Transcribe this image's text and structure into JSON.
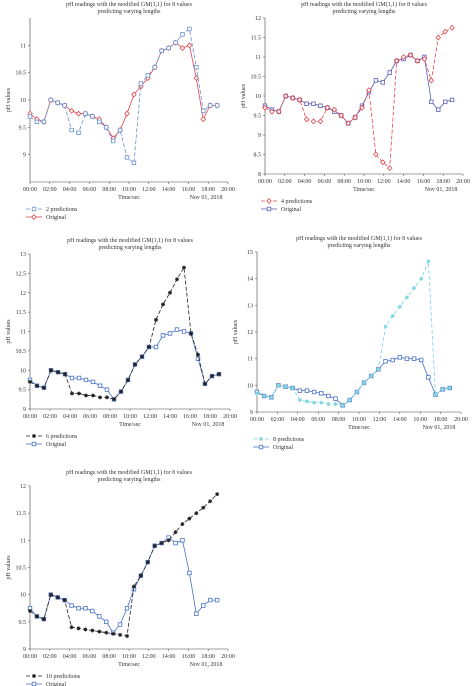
{
  "chart_data": [
    {
      "type": "line",
      "title": "pH readings with the modified GM(1,1) for 8 values predicting varying lengths",
      "title_lines": [
        "pH readings with the modified GM(1,1) for 8 values",
        "predicting varying lengths"
      ],
      "xlabel": "Time/sec",
      "xlabel2": "Nov 01, 2018",
      "ylabel": "pH values",
      "xticks": [
        "00:00",
        "02:00",
        "04:00",
        "06:00",
        "08:00",
        "10:00",
        "12:00",
        "14:00",
        "16:00",
        "18:00",
        "20:00"
      ],
      "xlim": [
        0,
        20
      ],
      "ylim": [
        8.5,
        11.5
      ],
      "yticks": [
        9,
        9.5,
        10,
        10.5,
        11
      ],
      "series": [
        {
          "name": "2 predictions",
          "color": "#6a8fd0",
          "marker": "square",
          "dash": "4,2",
          "x": [
            0,
            0.7,
            1.4,
            2.1,
            2.8,
            3.5,
            4.2,
            4.9,
            5.6,
            6.3,
            7.0,
            7.7,
            8.4,
            9.1,
            9.8,
            10.5,
            11.2,
            11.9,
            12.6,
            13.3,
            14.0,
            14.7,
            15.4,
            16.1,
            16.8,
            17.5,
            18.2,
            18.9
          ],
          "values": [
            9.7,
            9.6,
            9.6,
            10.0,
            9.95,
            9.9,
            9.45,
            9.4,
            9.75,
            9.7,
            9.6,
            9.5,
            9.25,
            9.45,
            8.95,
            8.85,
            10.3,
            10.45,
            10.6,
            10.9,
            10.95,
            11.05,
            11.2,
            11.3,
            10.6,
            9.8,
            9.9,
            9.9
          ]
        },
        {
          "name": "Original",
          "color": "#e0474c",
          "marker": "diamond",
          "dash": "",
          "x": [
            0,
            0.7,
            1.4,
            2.1,
            2.8,
            3.5,
            4.2,
            4.9,
            5.6,
            6.3,
            7.0,
            7.7,
            8.4,
            9.1,
            9.8,
            10.5,
            11.2,
            11.9,
            12.6,
            13.3,
            14.0,
            14.7,
            15.4,
            16.1,
            16.8,
            17.5,
            18.2,
            18.9
          ],
          "values": [
            9.75,
            9.65,
            9.6,
            10.0,
            9.95,
            9.9,
            9.8,
            9.75,
            9.75,
            9.7,
            9.65,
            9.5,
            9.3,
            9.45,
            9.75,
            10.1,
            10.25,
            10.4,
            10.6,
            10.9,
            10.95,
            11.05,
            10.95,
            11.0,
            10.4,
            9.65,
            9.9,
            9.9
          ]
        }
      ]
    },
    {
      "type": "line",
      "title": "pH readings with the modified GM(1,1) for 8 values predicting varying lengths",
      "title_lines": [
        "pH readings with the modified GM(1,1) for 8 values",
        "predicting varying lengths"
      ],
      "xlabel": "Time/sec",
      "xlabel2": "Nov 01, 2018",
      "ylabel": "pH values",
      "xticks": [
        "00:00",
        "02:00",
        "04:00",
        "06:00",
        "08:00",
        "10:00",
        "12:00",
        "14:00",
        "16:00",
        "18:00",
        "20:00"
      ],
      "xlim": [
        0,
        20
      ],
      "ylim": [
        8,
        12
      ],
      "yticks": [
        8,
        8.5,
        9,
        9.5,
        10,
        10.5,
        11,
        11.5,
        12
      ],
      "series": [
        {
          "name": "4 predictions",
          "color": "#e0474c",
          "marker": "diamond",
          "dash": "4,2",
          "x": [
            0,
            0.7,
            1.4,
            2.1,
            2.8,
            3.5,
            4.2,
            4.9,
            5.6,
            6.3,
            7.0,
            7.7,
            8.4,
            9.1,
            9.8,
            10.5,
            11.2,
            11.9,
            12.6,
            13.3,
            14.0,
            14.7,
            15.4,
            16.1,
            16.8,
            17.5,
            18.2,
            18.9
          ],
          "values": [
            9.7,
            9.6,
            9.6,
            10.0,
            9.95,
            9.9,
            9.4,
            9.35,
            9.35,
            9.7,
            9.65,
            9.5,
            9.3,
            9.45,
            9.7,
            10.15,
            8.5,
            8.3,
            8.15,
            10.9,
            11.0,
            11.05,
            10.9,
            10.95,
            10.4,
            11.5,
            11.65,
            11.75
          ]
        },
        {
          "name": "Original",
          "color": "#5b5fb6",
          "marker": "square",
          "dash": "",
          "x": [
            0,
            0.7,
            1.4,
            2.1,
            2.8,
            3.5,
            4.2,
            4.9,
            5.6,
            6.3,
            7.0,
            7.7,
            8.4,
            9.1,
            9.8,
            10.5,
            11.2,
            11.9,
            12.6,
            13.3,
            14.0,
            14.7,
            15.4,
            16.1,
            16.8,
            17.5,
            18.2,
            18.9
          ],
          "values": [
            9.75,
            9.65,
            9.6,
            10.0,
            9.95,
            9.9,
            9.8,
            9.8,
            9.75,
            9.7,
            9.6,
            9.5,
            9.3,
            9.45,
            9.75,
            10.1,
            10.4,
            10.35,
            10.6,
            10.9,
            10.95,
            11.05,
            10.9,
            11.0,
            9.85,
            9.65,
            9.85,
            9.9
          ]
        }
      ]
    },
    {
      "type": "line",
      "title": "pH readings with the modified GM(1,1) for 8 values predicting varying lengths",
      "title_lines": [
        "pH readings with the modified GM(1,1) for 8 values",
        "predicting varying lengths"
      ],
      "xlabel": "Time/sec",
      "xlabel2": "Nov 01, 2018",
      "ylabel": "pH values",
      "xticks": [
        "00:00",
        "02:00",
        "04:00",
        "06:00",
        "08:00",
        "10:00",
        "12:00",
        "14:00",
        "16:00",
        "18:00",
        "20:00"
      ],
      "xlim": [
        0,
        20
      ],
      "ylim": [
        9,
        13
      ],
      "yticks": [
        9,
        9.5,
        10,
        10.5,
        11,
        11.5,
        12,
        12.5,
        13
      ],
      "series": [
        {
          "name": "6 predictions",
          "color": "#222222",
          "marker": "star",
          "dash": "4,2",
          "x": [
            0,
            0.7,
            1.4,
            2.1,
            2.8,
            3.5,
            4.2,
            4.9,
            5.6,
            6.3,
            7.0,
            7.7,
            8.4,
            9.1,
            9.8,
            10.5,
            11.2,
            11.9,
            12.6,
            13.3,
            14.0,
            14.7,
            15.4,
            16.1,
            16.8,
            17.5,
            18.2,
            18.9
          ],
          "values": [
            9.7,
            9.6,
            9.55,
            10.0,
            9.95,
            9.9,
            9.4,
            9.4,
            9.35,
            9.35,
            9.3,
            9.3,
            9.25,
            9.45,
            9.75,
            10.15,
            10.35,
            10.6,
            11.3,
            11.7,
            12.0,
            12.35,
            12.65,
            10.95,
            10.4,
            9.65,
            9.85,
            9.9
          ]
        },
        {
          "name": "Original",
          "color": "#4a73c8",
          "marker": "square",
          "dash": "",
          "x": [
            0,
            0.7,
            1.4,
            2.1,
            2.8,
            3.5,
            4.2,
            4.9,
            5.6,
            6.3,
            7.0,
            7.7,
            8.4,
            9.1,
            9.8,
            10.5,
            11.2,
            11.9,
            12.6,
            13.3,
            14.0,
            14.7,
            15.4,
            16.1,
            16.8,
            17.5,
            18.2,
            18.9
          ],
          "values": [
            9.75,
            9.6,
            9.55,
            10.0,
            9.95,
            9.9,
            9.8,
            9.8,
            9.75,
            9.7,
            9.6,
            9.5,
            9.25,
            9.45,
            9.75,
            10.15,
            10.35,
            10.6,
            10.6,
            10.9,
            10.95,
            11.05,
            11.0,
            10.95,
            10.3,
            9.65,
            9.85,
            9.9
          ]
        }
      ]
    },
    {
      "type": "line",
      "title": "pH readings with the modified GM(1,1) for 8 values predicting varying lengths",
      "title_lines": [
        "pH readings with the modified GM(1,1) for 8 values",
        "predicting varying lengths"
      ],
      "xlabel": "Time/sec",
      "xlabel2": "Nov 01, 2018",
      "ylabel": "pH values",
      "xticks": [
        "00:00",
        "02:00",
        "04:00",
        "06:00",
        "08:00",
        "10:00",
        "12:00",
        "14:00",
        "16:00",
        "18:00",
        "20:00"
      ],
      "xlim": [
        0,
        20
      ],
      "ylim": [
        9,
        15
      ],
      "yticks": [
        9,
        10,
        11,
        12,
        13,
        14,
        15
      ],
      "series": [
        {
          "name": "8 predictions",
          "color": "#7fd6e0",
          "marker": "star",
          "dash": "4,2",
          "x": [
            0,
            0.7,
            1.4,
            2.1,
            2.8,
            3.5,
            4.2,
            4.9,
            5.6,
            6.3,
            7.0,
            7.7,
            8.4,
            9.1,
            9.8,
            10.5,
            11.2,
            11.9,
            12.6,
            13.3,
            14.0,
            14.7,
            15.4,
            16.1,
            16.8,
            17.5,
            18.2,
            18.9
          ],
          "values": [
            9.7,
            9.6,
            9.55,
            10.0,
            9.95,
            9.9,
            9.45,
            9.4,
            9.35,
            9.35,
            9.3,
            9.3,
            9.25,
            9.45,
            9.75,
            10.1,
            10.35,
            10.6,
            12.2,
            12.6,
            12.95,
            13.3,
            13.65,
            14.0,
            14.65,
            9.65,
            9.85,
            9.9
          ]
        },
        {
          "name": "Original",
          "color": "#4a73c8",
          "marker": "square",
          "dash": "",
          "x": [
            0,
            0.7,
            1.4,
            2.1,
            2.8,
            3.5,
            4.2,
            4.9,
            5.6,
            6.3,
            7.0,
            7.7,
            8.4,
            9.1,
            9.8,
            10.5,
            11.2,
            11.9,
            12.6,
            13.3,
            14.0,
            14.7,
            15.4,
            16.1,
            16.8,
            17.5,
            18.2,
            18.9
          ],
          "values": [
            9.75,
            9.6,
            9.55,
            10.0,
            9.95,
            9.9,
            9.8,
            9.8,
            9.75,
            9.7,
            9.6,
            9.5,
            9.25,
            9.45,
            9.75,
            10.1,
            10.35,
            10.6,
            10.9,
            10.95,
            11.05,
            11.0,
            11.0,
            10.95,
            10.3,
            9.65,
            9.85,
            9.9
          ]
        }
      ]
    },
    {
      "type": "line",
      "title": "pH readings with the modified GM(1,1) for 8 values predicting varying lengths",
      "title_lines": [
        "pH readings with the modified GM(1,1) for 8 values",
        "predicting varying lengths"
      ],
      "xlabel": "Time/sec",
      "xlabel2": "Nov 01, 2018",
      "ylabel": "pH values",
      "xticks": [
        "00:00",
        "02:00",
        "04:00",
        "06:00",
        "08:00",
        "10:00",
        "12:00",
        "14:00",
        "16:00",
        "18:00",
        "20:00"
      ],
      "xlim": [
        0,
        20
      ],
      "ylim": [
        9,
        12
      ],
      "yticks": [
        9,
        9.5,
        10,
        10.5,
        11,
        11.5,
        12
      ],
      "series": [
        {
          "name": "10 predictions",
          "color": "#222222",
          "marker": "star",
          "dash": "4,2",
          "x": [
            0,
            0.7,
            1.4,
            2.1,
            2.8,
            3.5,
            4.2,
            4.9,
            5.6,
            6.3,
            7.0,
            7.7,
            8.4,
            9.1,
            9.8,
            10.5,
            11.2,
            11.9,
            12.6,
            13.3,
            14.0,
            14.7,
            15.4,
            16.1,
            16.8,
            17.5,
            18.2,
            18.9
          ],
          "values": [
            9.7,
            9.6,
            9.55,
            10.0,
            9.95,
            9.9,
            9.4,
            9.38,
            9.36,
            9.34,
            9.32,
            9.3,
            9.28,
            9.26,
            9.24,
            10.15,
            10.35,
            10.6,
            10.9,
            10.95,
            11.0,
            11.15,
            11.3,
            11.4,
            11.5,
            11.6,
            11.72,
            11.85
          ]
        },
        {
          "name": "Original",
          "color": "#4a73c8",
          "marker": "square",
          "dash": "",
          "x": [
            0,
            0.7,
            1.4,
            2.1,
            2.8,
            3.5,
            4.2,
            4.9,
            5.6,
            6.3,
            7.0,
            7.7,
            8.4,
            9.1,
            9.8,
            10.5,
            11.2,
            11.9,
            12.6,
            13.3,
            14.0,
            14.7,
            15.4,
            16.1,
            16.8,
            17.5,
            18.2,
            18.9
          ],
          "values": [
            9.75,
            9.6,
            9.55,
            10.0,
            9.95,
            9.9,
            9.8,
            9.75,
            9.75,
            9.7,
            9.6,
            9.5,
            9.3,
            9.45,
            9.75,
            10.1,
            10.35,
            10.6,
            10.9,
            10.95,
            11.05,
            10.95,
            11.0,
            10.4,
            9.65,
            9.8,
            9.9,
            9.9
          ]
        }
      ]
    }
  ]
}
